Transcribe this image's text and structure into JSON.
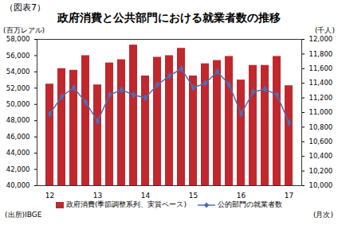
{
  "chart_data": {
    "type": "bar",
    "kicker": "（図表7）",
    "title": "政府消費と公共部門における就業者数の推移",
    "ylabel": "(百万レアル)",
    "y2label": "(千人)",
    "xlabel": "(月次)",
    "source": "(出所)IBGE",
    "categories": [
      "12",
      null,
      null,
      null,
      "13",
      null,
      null,
      null,
      "14",
      null,
      null,
      null,
      "15",
      null,
      null,
      null,
      "16",
      null,
      null,
      null,
      "17"
    ],
    "series": [
      {
        "name": "政府消費(季節調整系列、実質ベース)",
        "type": "bar",
        "color": "#c0282d",
        "values": [
          52500,
          54400,
          54200,
          56000,
          52400,
          55100,
          55500,
          57300,
          53500,
          55800,
          56000,
          56900,
          53500,
          55000,
          55400,
          55900,
          53000,
          54800,
          54800,
          55900,
          52300
        ]
      },
      {
        "name": "公的部門の就業者数",
        "type": "line",
        "axis": "y2",
        "color": "#4a6fb5",
        "marker": "diamond",
        "values": [
          10980,
          11220,
          11340,
          11140,
          10880,
          11240,
          11310,
          11240,
          11200,
          11380,
          11500,
          11600,
          11340,
          11400,
          11560,
          11380,
          10980,
          11280,
          11320,
          11240,
          10860
        ]
      }
    ],
    "ylim": [
      40000,
      58000
    ],
    "yticks": [
      {
        "value": 40000,
        "label": "40,000"
      },
      {
        "value": 42000,
        "label": "42,000"
      },
      {
        "value": 44000,
        "label": "44,000"
      },
      {
        "value": 46000,
        "label": "46,000"
      },
      {
        "value": 48000,
        "label": "48,000"
      },
      {
        "value": 50000,
        "label": "50,000"
      },
      {
        "value": 52000,
        "label": "52,000"
      },
      {
        "value": 54000,
        "label": "54,000"
      },
      {
        "value": 56000,
        "label": "56,000"
      },
      {
        "value": 58000,
        "label": "58,000"
      }
    ],
    "y2lim": [
      10000,
      12000
    ],
    "y2ticks": [
      {
        "value": 10000,
        "label": "10,000"
      },
      {
        "value": 10200,
        "label": "10,200"
      },
      {
        "value": 10400,
        "label": "10,400"
      },
      {
        "value": 10600,
        "label": "10,600"
      },
      {
        "value": 10800,
        "label": "10,800"
      },
      {
        "value": 11000,
        "label": "11,000"
      },
      {
        "value": 11200,
        "label": "11,200"
      },
      {
        "value": 11400,
        "label": "11,400"
      },
      {
        "value": 11600,
        "label": "11,600"
      },
      {
        "value": 11800,
        "label": "11,800"
      },
      {
        "value": 12000,
        "label": "12,000"
      }
    ],
    "grid": false,
    "legend": "bottom"
  }
}
